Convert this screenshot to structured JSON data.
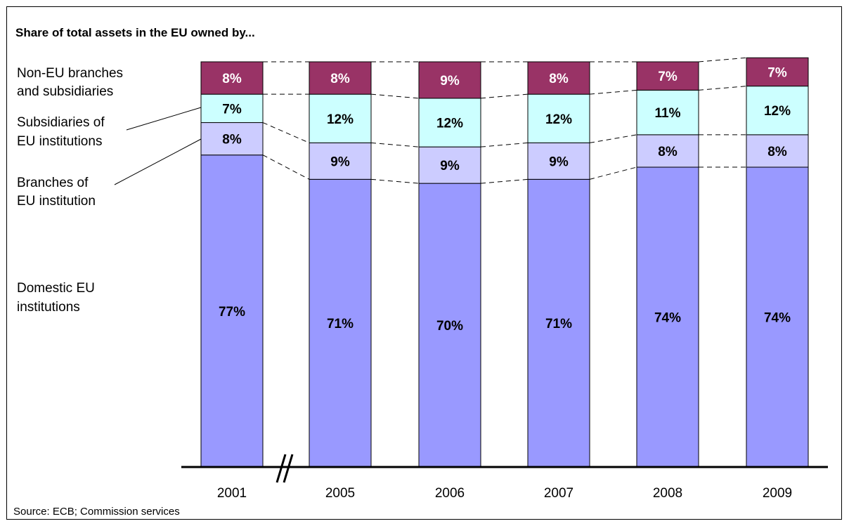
{
  "title": "Share of total assets in the EU owned by...",
  "source": "Source: ECB; Commission services",
  "chart_data": {
    "type": "bar",
    "stacked": true,
    "categories": [
      "2001",
      "2005",
      "2006",
      "2007",
      "2008",
      "2009"
    ],
    "axis_break_after": "2001",
    "series": [
      {
        "name": "Domestic EU institutions",
        "color": "#9999ff",
        "values": [
          77,
          71,
          70,
          71,
          74,
          74
        ],
        "labels": [
          "77%",
          "71%",
          "70%",
          "71%",
          "74%",
          "74%"
        ]
      },
      {
        "name": "Branches of EU institution",
        "color": "#ccccff",
        "values": [
          8,
          9,
          9,
          9,
          8,
          8
        ],
        "labels": [
          "8%",
          "9%",
          "9%",
          "9%",
          "8%",
          "8%"
        ]
      },
      {
        "name": "Subsidiaries of EU institutions",
        "color": "#ccffff",
        "values": [
          7,
          12,
          12,
          12,
          11,
          12
        ],
        "labels": [
          "7%",
          "12%",
          "12%",
          "12%",
          "11%",
          "12%"
        ]
      },
      {
        "name": "Non-EU branches and subsidiaries",
        "color": "#993366",
        "values": [
          8,
          8,
          9,
          8,
          7,
          7
        ],
        "labels": [
          "8%",
          "8%",
          "9%",
          "8%",
          "7%",
          "7%"
        ]
      }
    ],
    "legend_lines": [
      [
        "Non-EU branches",
        "and subsidiaries"
      ],
      [
        "Subsidiaries of",
        "EU institutions"
      ],
      [
        "Branches of",
        "EU institution"
      ],
      [
        "Domestic EU",
        "institutions"
      ]
    ],
    "ylim": [
      0,
      100
    ],
    "grid": false,
    "legend_position": "left"
  }
}
